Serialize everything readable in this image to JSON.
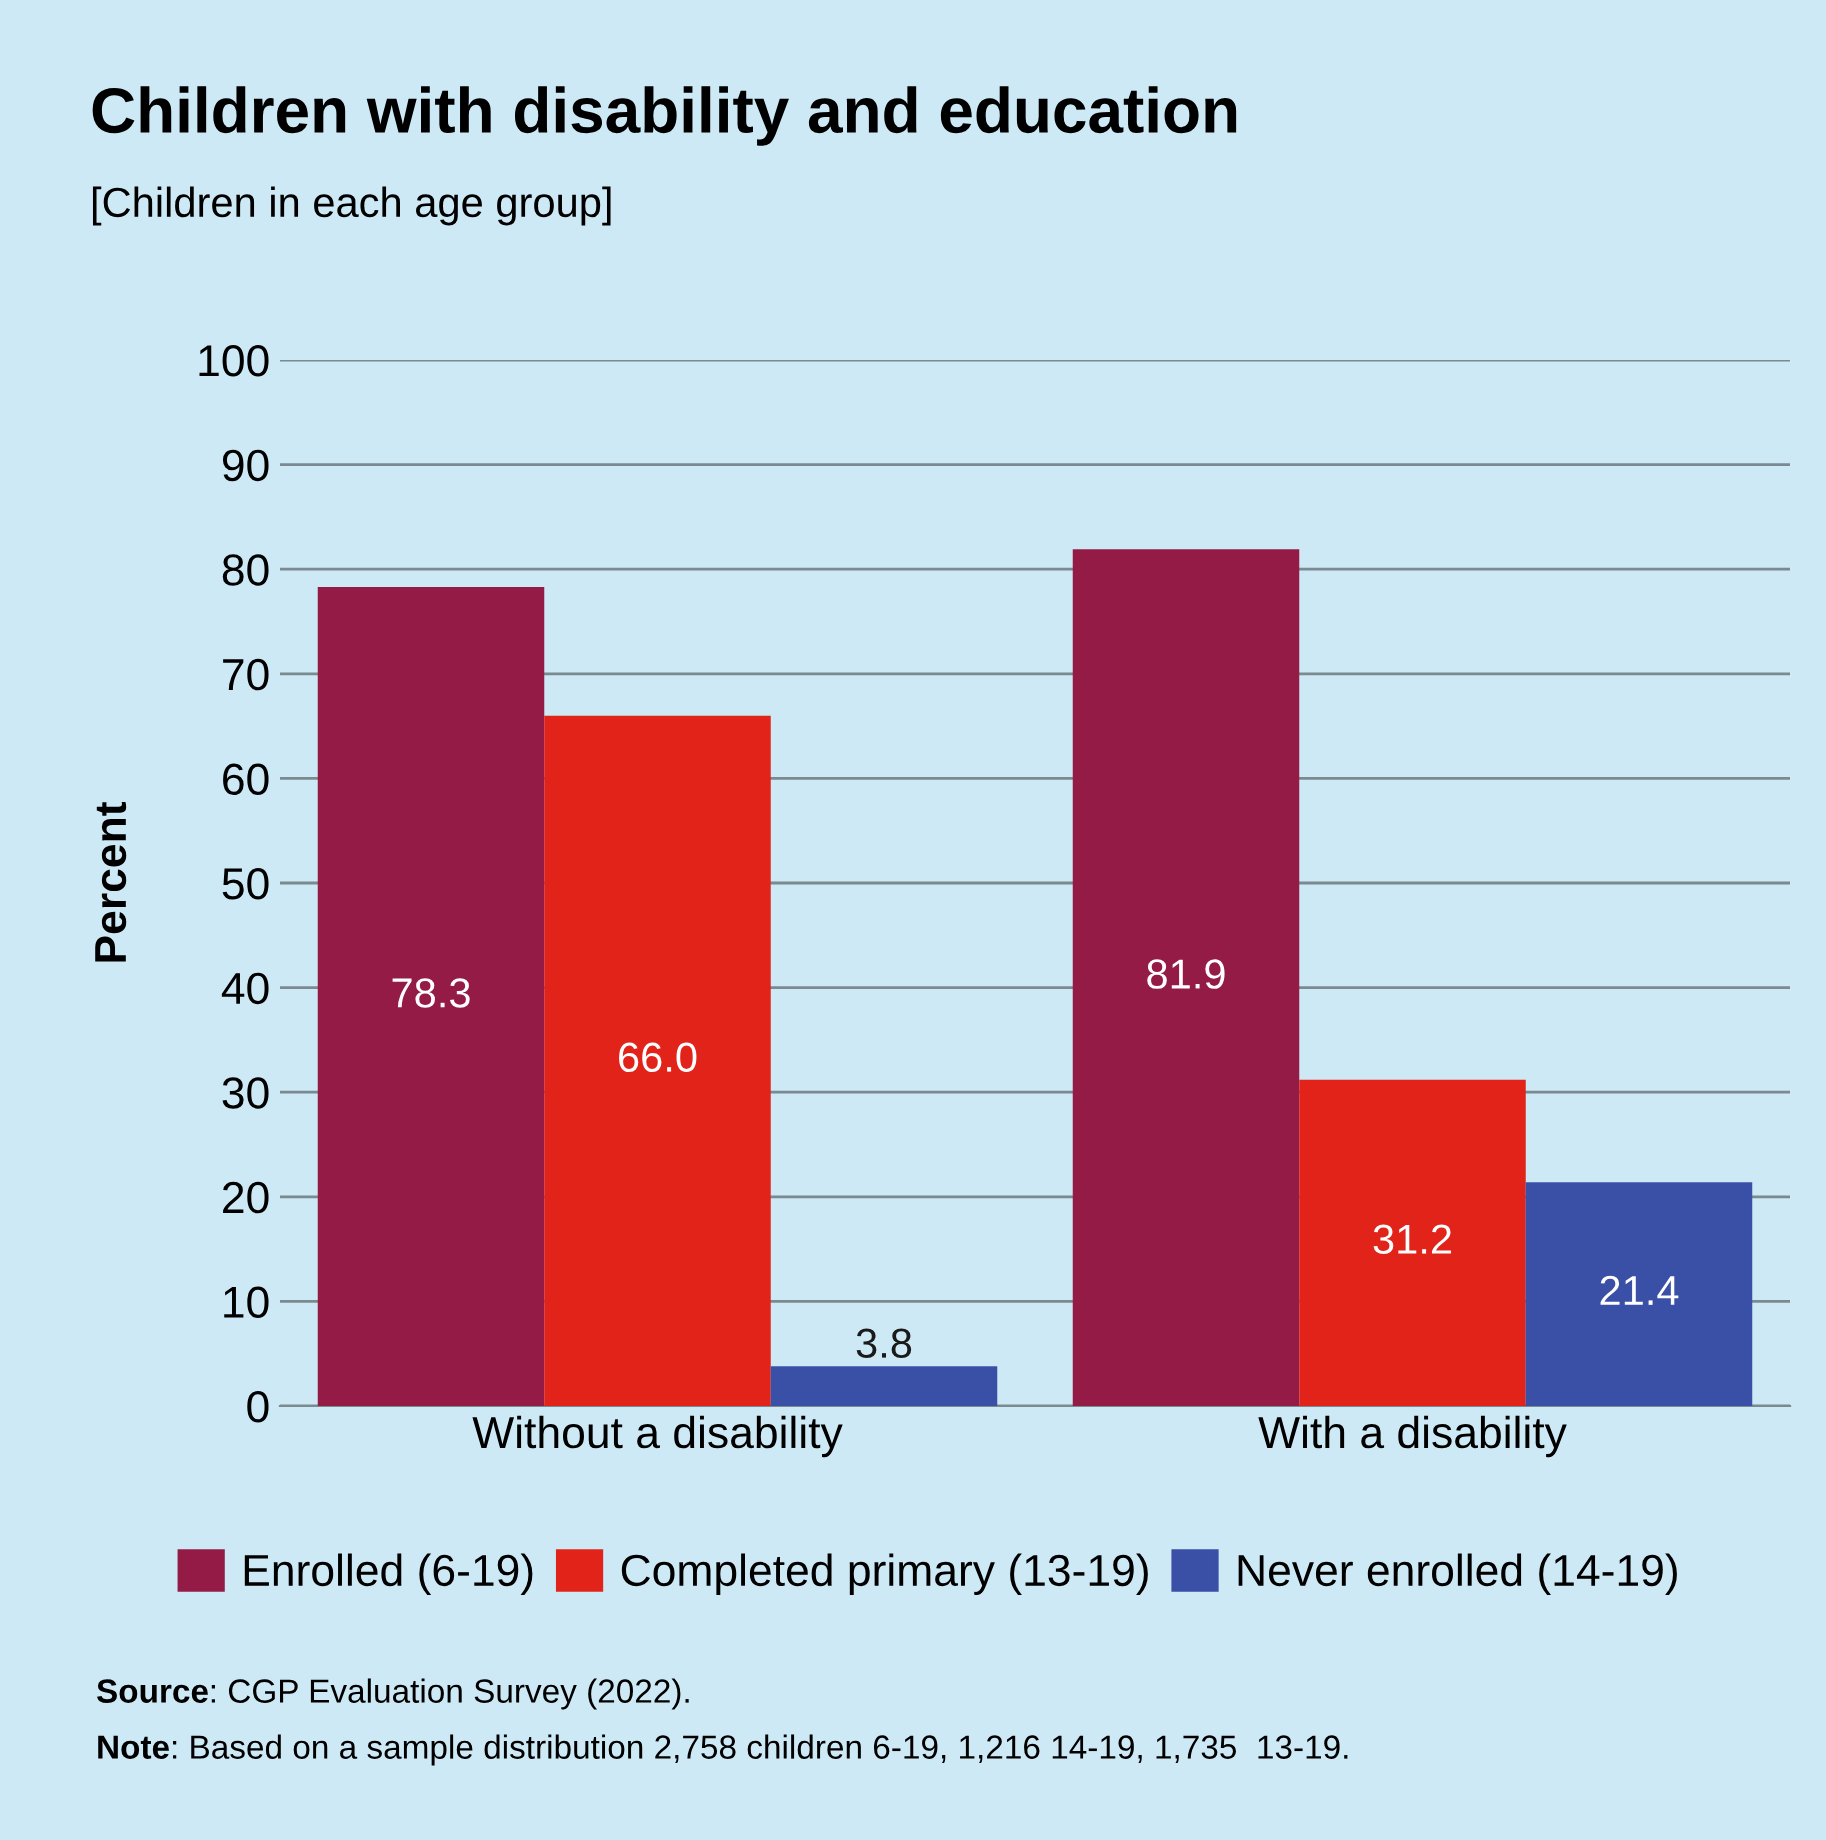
{
  "chart_data": {
    "type": "bar",
    "title": "Children with disability and education",
    "subtitle": "[Children in each age group]",
    "ylabel": "Percent",
    "categories": [
      "Without a disability",
      "With a disability"
    ],
    "series": [
      {
        "name": "Enrolled (6-19)",
        "color": "#951b47",
        "values": [
          78.3,
          81.9
        ]
      },
      {
        "name": "Completed primary (13-19)",
        "color": "#e2231a",
        "values": [
          66.0,
          31.2
        ]
      },
      {
        "name": "Never enrolled (14-19)",
        "color": "#3a4fa6",
        "values": [
          3.8,
          21.4
        ]
      }
    ],
    "value_labels": [
      [
        "78.3",
        "81.9"
      ],
      [
        "66.0",
        "31.2"
      ],
      [
        "3.8",
        "21.4"
      ]
    ],
    "ylim": [
      0,
      100
    ],
    "yticks": [
      0,
      10,
      20,
      30,
      40,
      50,
      60,
      70,
      80,
      90,
      100
    ],
    "grid": "y",
    "legend": "bottom",
    "annotations": [
      "Source: CGP Evaluation Survey (2022).",
      "Note: Based on a sample distribution 2,758 children 6-19, 1,216 14-19, 1,735  13-19."
    ]
  }
}
